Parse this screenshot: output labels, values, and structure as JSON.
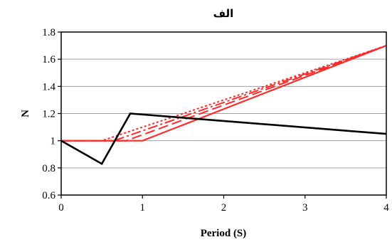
{
  "chart_data": {
    "type": "line",
    "title": "الف",
    "xlabel": "Period (S)",
    "ylabel": "N",
    "xlim": [
      0,
      4
    ],
    "ylim": [
      0.6,
      1.8
    ],
    "xticks": [
      0,
      1,
      2,
      3,
      4
    ],
    "yticks": [
      0.6,
      0.8,
      1,
      1.2,
      1.4,
      1.6,
      1.8
    ],
    "xtick_labels": [
      "0",
      "1",
      "2",
      "3",
      "4"
    ],
    "ytick_labels": [
      "0.6",
      "0.8",
      "1",
      "1.2",
      "1.4",
      "1.6",
      "1.8"
    ],
    "grid": "horizontal",
    "legend": "none",
    "series": [
      {
        "color": "#000000",
        "style": "solid",
        "width": 2.6,
        "x": [
          0,
          0.5,
          0.85,
          4
        ],
        "y": [
          1.0,
          0.83,
          1.2,
          1.05
        ]
      },
      {
        "color": "#ff2a2a",
        "style": "solid",
        "width": 2.2,
        "x": [
          0,
          1.0,
          4
        ],
        "y": [
          1.0,
          1.0,
          1.7
        ]
      },
      {
        "color": "#ff2a2a",
        "style": "dashed",
        "width": 2.0,
        "x": [
          0,
          0.8,
          4
        ],
        "y": [
          1.0,
          1.0,
          1.7
        ]
      },
      {
        "color": "#ff2a2a",
        "style": "dashdot",
        "width": 2.0,
        "x": [
          0,
          0.65,
          4
        ],
        "y": [
          1.0,
          1.0,
          1.7
        ]
      },
      {
        "color": "#ff2a2a",
        "style": "dotted",
        "width": 2.0,
        "x": [
          0,
          0.5,
          4
        ],
        "y": [
          1.0,
          1.0,
          1.7
        ]
      }
    ]
  }
}
